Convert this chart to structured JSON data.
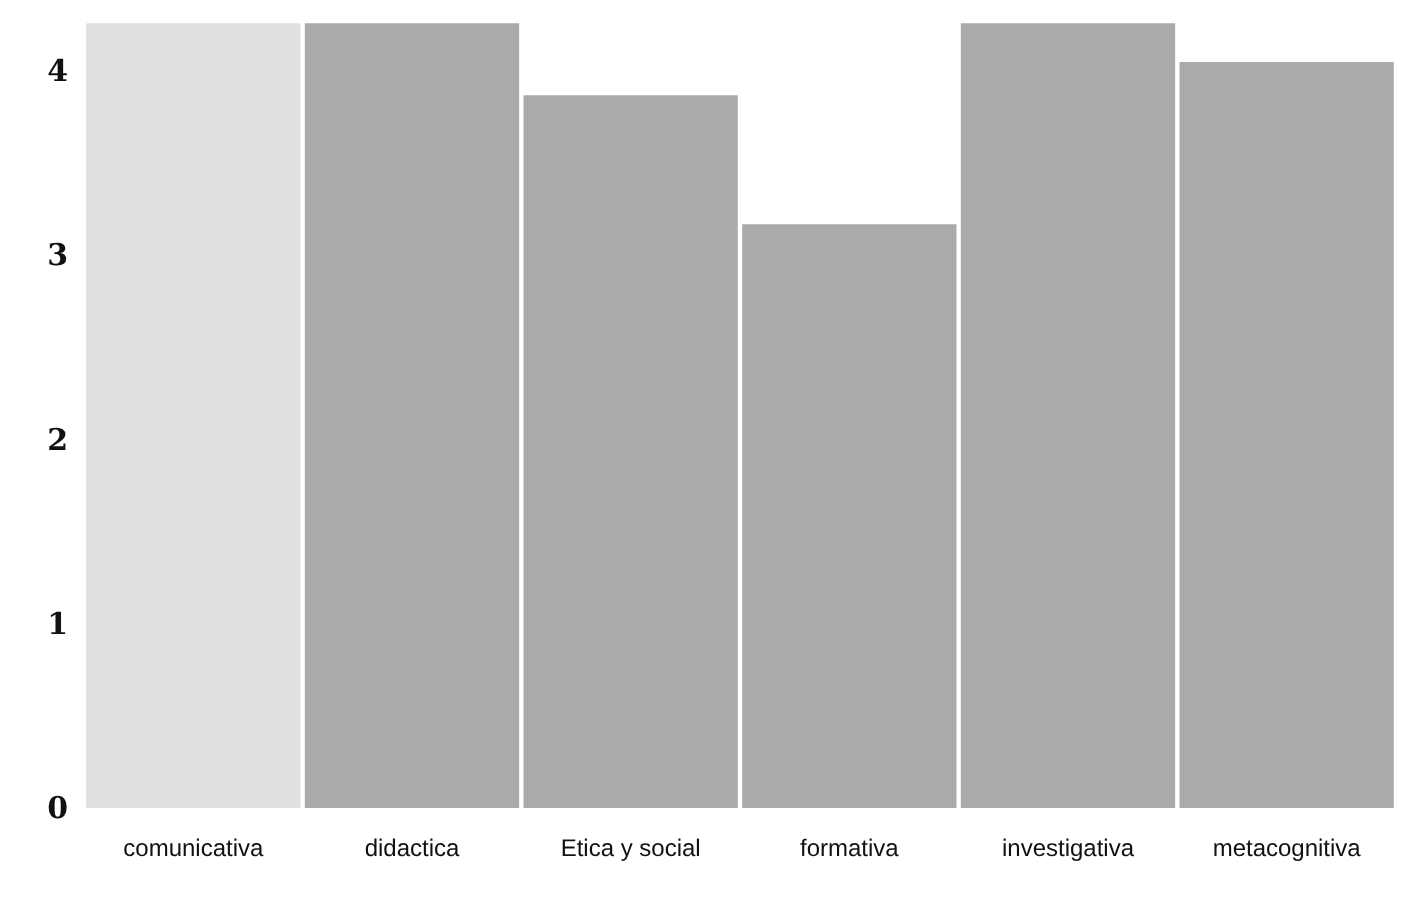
{
  "chart_data": {
    "type": "bar",
    "categories": [
      "comunicativa",
      "didactica",
      "Etica y social",
      "formativa",
      "investigativa",
      "metacognitiva"
    ],
    "values": [
      4.26,
      4.26,
      3.87,
      3.17,
      4.26,
      4.05
    ],
    "colors": [
      "#e0e0e0",
      "#aaaaaa",
      "#aaaaaa",
      "#aaaaaa",
      "#aaaaaa",
      "#aaaaaa"
    ],
    "ylim": [
      0,
      4.3
    ],
    "yticks": [
      0,
      1,
      2,
      3,
      4
    ],
    "grid": false
  }
}
